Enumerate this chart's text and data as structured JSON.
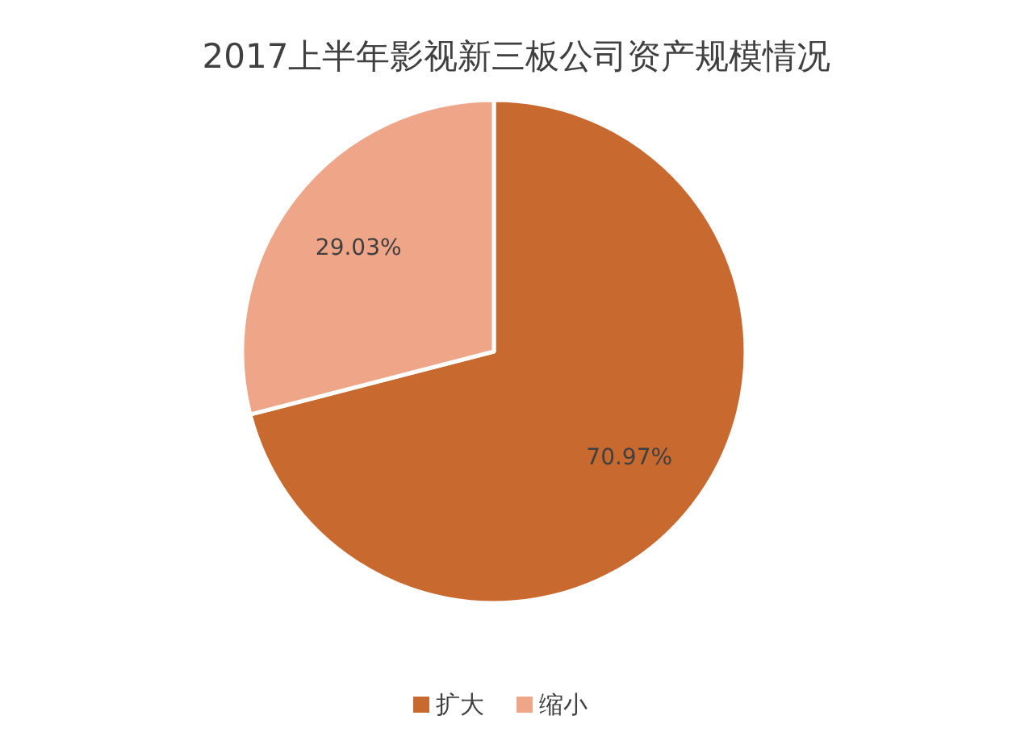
{
  "chart_data": {
    "type": "pie",
    "title": "2017上半年影视新三板公司资产规模情况",
    "categories": [
      "扩大",
      "缩小"
    ],
    "values": [
      70.97,
      29.03
    ],
    "value_labels": [
      "70.97%",
      "29.03%"
    ],
    "colors": [
      "#c8692f",
      "#efa688"
    ],
    "legend": "bottom"
  }
}
